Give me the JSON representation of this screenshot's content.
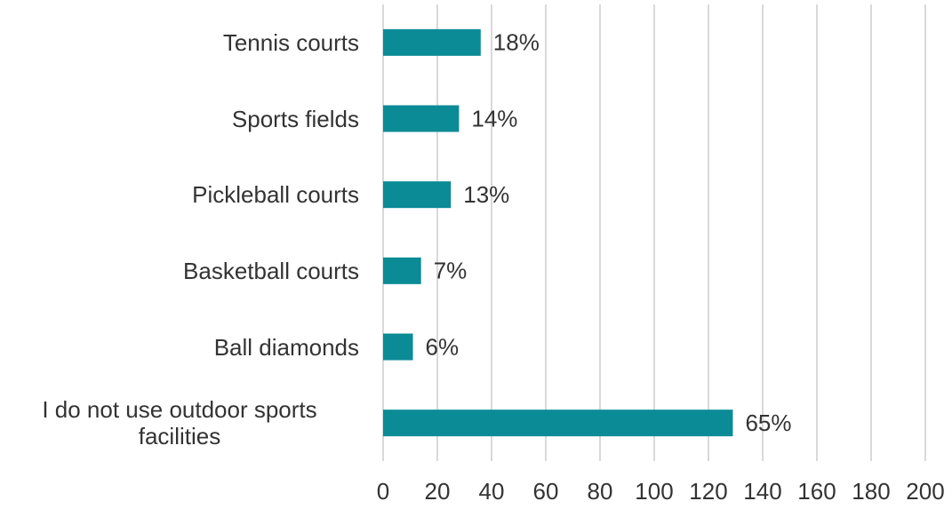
{
  "chart_data": {
    "type": "bar",
    "orientation": "horizontal",
    "categories": [
      "Tennis courts",
      "Sports fields",
      "Pickleball courts",
      "Basketball courts",
      "Ball diamonds",
      "I do not use outdoor sports facilities"
    ],
    "values": [
      36,
      28,
      25,
      14,
      11,
      129
    ],
    "value_labels": [
      "18%",
      "14%",
      "13%",
      "7%",
      "6%",
      "65%"
    ],
    "color": "#0b8b96",
    "xlim": [
      0,
      200
    ],
    "xticks": [
      0,
      20,
      40,
      60,
      80,
      100,
      120,
      140,
      160,
      180,
      200
    ],
    "grid": true
  }
}
